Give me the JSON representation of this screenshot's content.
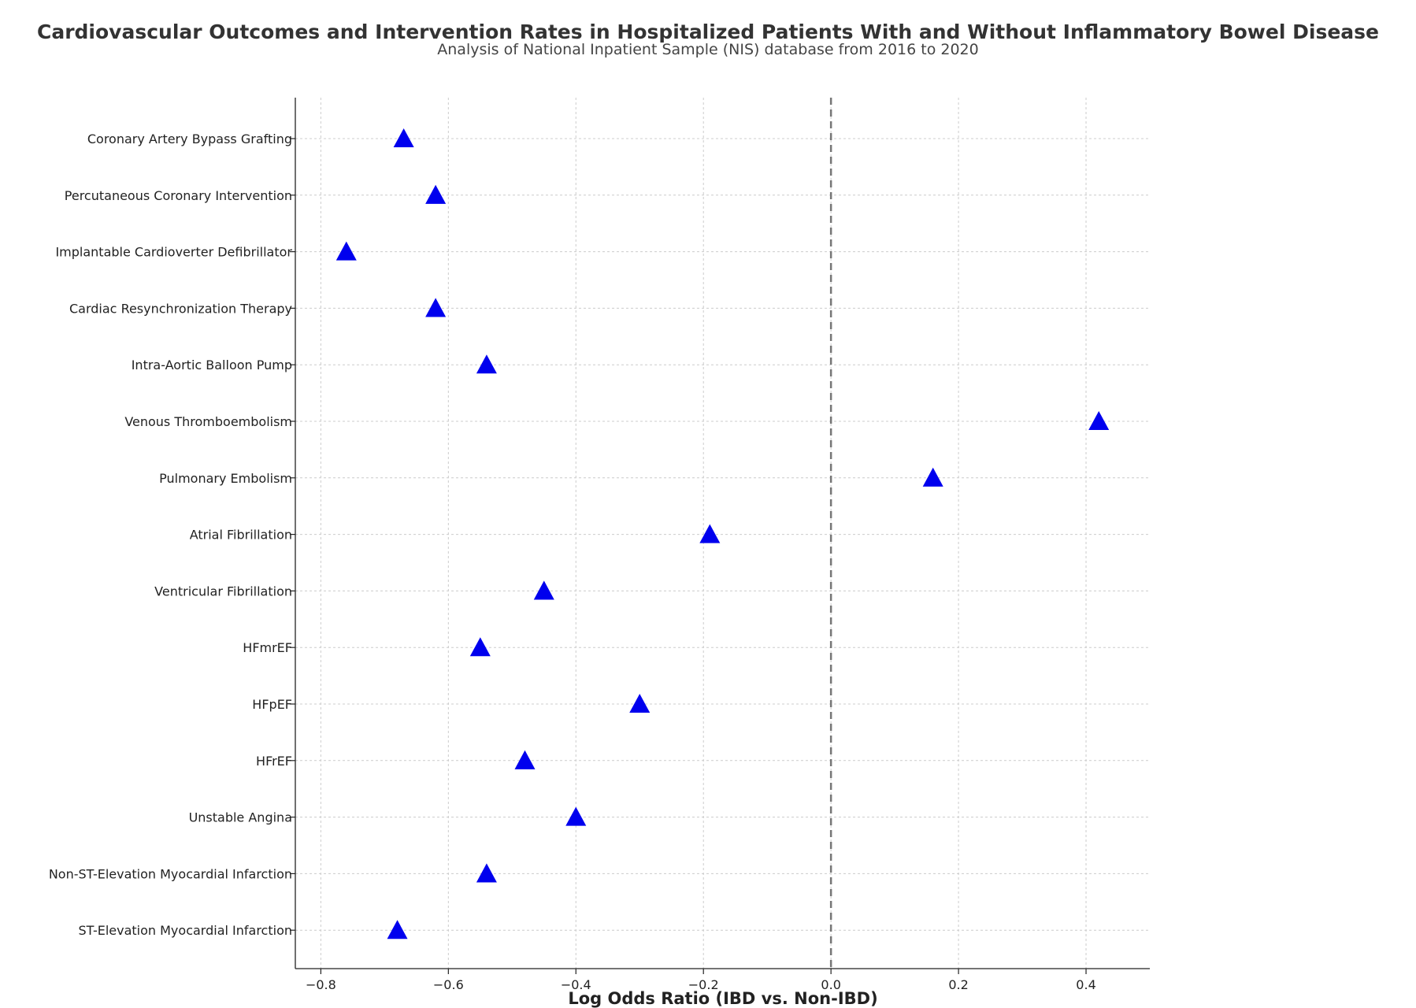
{
  "chart_data": {
    "type": "scatter",
    "title": "Cardiovascular Outcomes and Intervention Rates in Hospitalized Patients With and Without Inflammatory Bowel Disease",
    "subtitle": "Analysis of National Inpatient Sample (NIS) database from 2016 to 2020",
    "xlabel": "Log Odds Ratio (IBD vs. Non-IBD)",
    "ylabel": "",
    "xlim": [
      -0.84,
      0.5
    ],
    "xticks": [
      -0.8,
      -0.6,
      -0.4,
      -0.2,
      0.0,
      0.2,
      0.4
    ],
    "xtick_labels": [
      "−0.8",
      "−0.6",
      "−0.4",
      "−0.2",
      "0.0",
      "0.2",
      "0.4"
    ],
    "reference_line": 0.0,
    "grid": true,
    "marker": "triangle",
    "marker_color": "#0000ee",
    "categories": [
      "Coronary Artery Bypass Grafting",
      "Percutaneous Coronary Intervention",
      "Implantable Cardioverter Defibrillator",
      "Cardiac Resynchronization Therapy",
      "Intra-Aortic Balloon Pump",
      "Venous Thromboembolism",
      "Pulmonary Embolism",
      "Atrial Fibrillation",
      "Ventricular Fibrillation",
      "HFmrEF",
      "HFpEF",
      "HFrEF",
      "Unstable Angina",
      "Non-ST-Elevation Myocardial Infarction",
      "ST-Elevation Myocardial Infarction"
    ],
    "values": [
      -0.67,
      -0.62,
      -0.76,
      -0.62,
      -0.54,
      0.42,
      0.16,
      -0.19,
      -0.45,
      -0.55,
      -0.3,
      -0.48,
      -0.4,
      -0.54,
      -0.68
    ]
  }
}
